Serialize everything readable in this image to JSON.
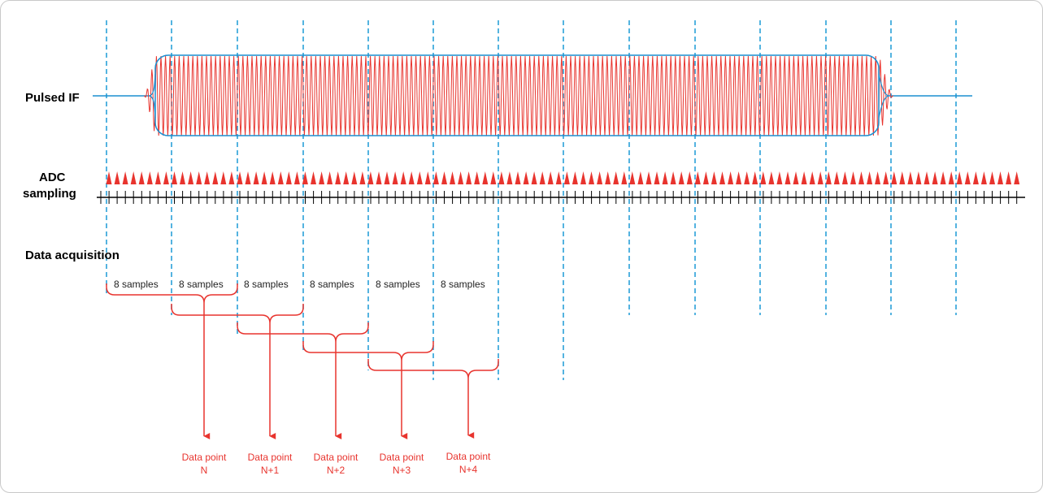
{
  "labels": {
    "pulsed_if": "Pulsed IF",
    "adc_line1": "ADC",
    "adc_line2": "sampling",
    "data_acquisition": "Data acquisition"
  },
  "sample_groups": [
    "8 samples",
    "8 samples",
    "8 samples",
    "8 samples",
    "8 samples",
    "8 samples"
  ],
  "data_points": [
    {
      "line1": "Data point",
      "line2": "N"
    },
    {
      "line1": "Data point",
      "line2": "N+1"
    },
    {
      "line1": "Data point",
      "line2": "N+2"
    },
    {
      "line1": "Data point",
      "line2": "N+3"
    },
    {
      "line1": "Data point",
      "line2": "N+4"
    }
  ],
  "colors": {
    "pulse": "#e8342e",
    "envelope": "#1b8fd0",
    "gridline": "#1b9ad6",
    "bracket": "#e8342e",
    "axis": "#000000"
  }
}
